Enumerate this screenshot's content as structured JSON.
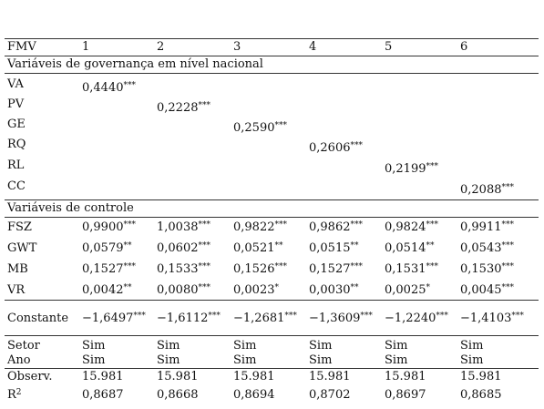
{
  "header": {
    "label": "FMV",
    "cols": [
      "1",
      "2",
      "3",
      "4",
      "5",
      "6"
    ]
  },
  "section1": {
    "title": "Variáveis de governança em nível nacional"
  },
  "gov_rows": [
    {
      "label": "VA",
      "value": "0,4440",
      "stars": "***"
    },
    {
      "label": "PV",
      "value": "0,2228",
      "stars": "***"
    },
    {
      "label": "GE",
      "value": "0,2590",
      "stars": "***"
    },
    {
      "label": "RQ",
      "value": "0,2606",
      "stars": "***"
    },
    {
      "label": "RL",
      "value": "0,2199",
      "stars": "***"
    },
    {
      "label": "CC",
      "value": "0,2088",
      "stars": "***"
    }
  ],
  "section2": {
    "title": "Variáveis de controle"
  },
  "control_rows": [
    {
      "label": "FSZ",
      "cells": [
        {
          "v": "0,9900",
          "s": "***"
        },
        {
          "v": "1,0038",
          "s": "***"
        },
        {
          "v": "0,9822",
          "s": "***"
        },
        {
          "v": "0,9862",
          "s": "***"
        },
        {
          "v": "0,9824",
          "s": "***"
        },
        {
          "v": "0,9911",
          "s": "***"
        }
      ]
    },
    {
      "label": "GWT",
      "cells": [
        {
          "v": "0,0579",
          "s": "**"
        },
        {
          "v": "0,0602",
          "s": "***"
        },
        {
          "v": "0,0521",
          "s": "**"
        },
        {
          "v": "0,0515",
          "s": "**"
        },
        {
          "v": "0,0514",
          "s": "**"
        },
        {
          "v": "0,0543",
          "s": "***"
        }
      ]
    },
    {
      "label": "MB",
      "cells": [
        {
          "v": "0,1527",
          "s": "***"
        },
        {
          "v": "0,1533",
          "s": "***"
        },
        {
          "v": "0,1526",
          "s": "***"
        },
        {
          "v": "0,1527",
          "s": "***"
        },
        {
          "v": "0,1531",
          "s": "***"
        },
        {
          "v": "0,1530",
          "s": "***"
        }
      ]
    },
    {
      "label": "VR",
      "cells": [
        {
          "v": "0,0042",
          "s": "**"
        },
        {
          "v": "0,0080",
          "s": "***"
        },
        {
          "v": "0,0023",
          "s": "*"
        },
        {
          "v": "0,0030",
          "s": "**"
        },
        {
          "v": "0,0025",
          "s": "*"
        },
        {
          "v": "0,0045",
          "s": "***"
        }
      ]
    }
  ],
  "constant_row": {
    "label": "Constante",
    "cells": [
      {
        "v": "−1,6497",
        "s": "***"
      },
      {
        "v": "−1,6112",
        "s": "***"
      },
      {
        "v": "−1,2681",
        "s": "***"
      },
      {
        "v": "−1,3609",
        "s": "***"
      },
      {
        "v": "−1,2240",
        "s": "***"
      },
      {
        "v": "−1,4103",
        "s": "***"
      }
    ]
  },
  "footer_rows": [
    {
      "label": "Setor",
      "cells": [
        "Sim",
        "Sim",
        "Sim",
        "Sim",
        "Sim",
        "Sim"
      ]
    },
    {
      "label": "Ano",
      "cells": [
        "Sim",
        "Sim",
        "Sim",
        "Sim",
        "Sim",
        "Sim"
      ]
    },
    {
      "label": "Observ.",
      "cells": [
        "15.981",
        "15.981",
        "15.981",
        "15.981",
        "15.981",
        "15.981"
      ]
    },
    {
      "label": "R",
      "label_sup": "2",
      "cells": [
        "0,8687",
        "0,8668",
        "0,8694",
        "0,8702",
        "0,8697",
        "0,8685"
      ]
    }
  ]
}
